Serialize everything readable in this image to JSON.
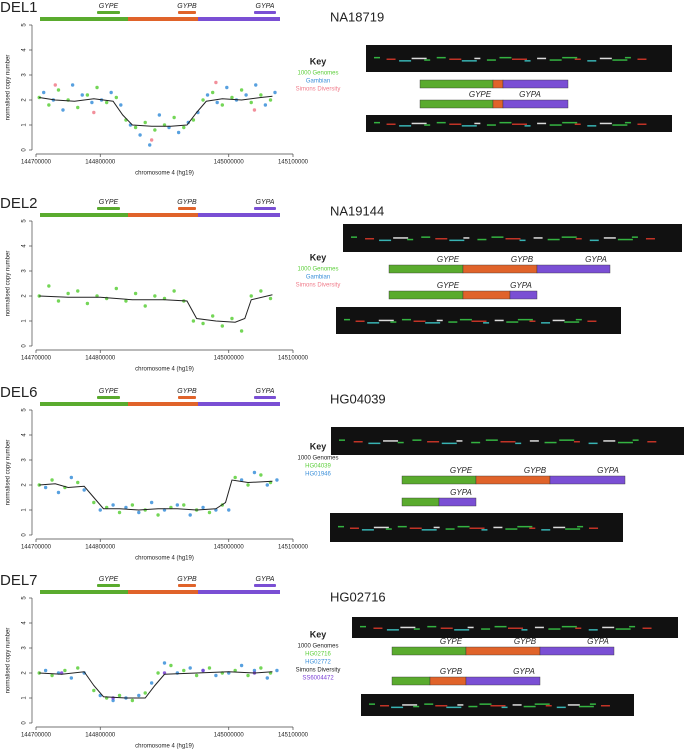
{
  "chart_data": [
    {
      "type": "scatter",
      "title": "DEL1",
      "genes": [
        "GYPE",
        "GYPB",
        "GYPA"
      ],
      "xlabel": "chromosome 4 (hg19)",
      "ylabel": "normalised copy number",
      "xlim": [
        144700000,
        145100000
      ],
      "xticks": [
        144700000,
        144800000,
        145000000,
        145100000
      ],
      "ylim": [
        0,
        5
      ],
      "yticks": [
        0,
        1,
        2,
        3,
        4,
        5
      ],
      "legend_title": "Key",
      "series": [
        {
          "name": "1000 Genomes",
          "color": "#5ccf3a",
          "x": [
            144705000,
            144720000,
            144735000,
            144750000,
            144765000,
            144780000,
            144795000,
            144810000,
            144825000,
            144840000,
            144855000,
            144870000,
            144885000,
            144900000,
            144915000,
            144930000,
            144945000,
            144960000,
            144975000,
            144990000,
            145005000,
            145020000,
            145035000,
            145050000,
            145065000
          ],
          "values": [
            2.1,
            1.8,
            2.4,
            2.0,
            1.7,
            2.2,
            2.5,
            1.9,
            2.1,
            1.2,
            0.9,
            1.1,
            0.8,
            1.0,
            1.3,
            0.9,
            1.2,
            2.0,
            2.3,
            1.8,
            2.1,
            2.4,
            1.9,
            2.2,
            2.0
          ]
        },
        {
          "name": "Gambian",
          "color": "#3a8fd9",
          "x": [
            144712000,
            144727000,
            144742000,
            144757000,
            144772000,
            144787000,
            144802000,
            144817000,
            144832000,
            144847000,
            144862000,
            144877000,
            144892000,
            144907000,
            144922000,
            144937000,
            144952000,
            144967000,
            144982000,
            144997000,
            145012000,
            145027000,
            145042000,
            145057000,
            145072000
          ],
          "values": [
            2.3,
            2.0,
            1.6,
            2.6,
            2.2,
            1.9,
            2.0,
            2.3,
            1.8,
            1.0,
            0.6,
            0.2,
            1.4,
            0.9,
            0.7,
            1.1,
            1.5,
            2.2,
            1.9,
            2.5,
            2.0,
            2.2,
            2.6,
            1.8,
            2.3
          ]
        },
        {
          "name": "Simons Diversity",
          "color": "#f07b8a",
          "x": [
            144730000,
            144790000,
            144880000,
            144980000,
            145040000
          ],
          "values": [
            2.6,
            1.5,
            0.4,
            2.7,
            1.6
          ]
        }
      ],
      "trend": {
        "color": "#222222",
        "x": [
          144705000,
          144730000,
          144760000,
          144790000,
          144820000,
          144835000,
          144850000,
          144880000,
          144910000,
          144935000,
          144950000,
          144965000,
          144990000,
          145020000,
          145050000,
          145068000
        ],
        "values": [
          2.1,
          2.0,
          1.95,
          2.05,
          1.95,
          1.4,
          1.0,
          0.95,
          0.95,
          1.0,
          1.5,
          1.95,
          2.05,
          2.0,
          2.1,
          2.15
        ]
      }
    },
    {
      "type": "scatter",
      "title": "DEL2",
      "genes": [
        "GYPE",
        "GYPB",
        "GYPA"
      ],
      "xlabel": "chromosome 4 (hg19)",
      "ylabel": "normalised copy number",
      "xlim": [
        144700000,
        145100000
      ],
      "xticks": [
        144700000,
        144800000,
        145000000,
        145100000
      ],
      "ylim": [
        0,
        5
      ],
      "yticks": [
        0,
        1,
        2,
        3,
        4,
        5
      ],
      "legend_title": "Key",
      "series": [
        {
          "name": "1000 Genomes",
          "color": "#5ccf3a",
          "x": [
            144705000,
            144720000,
            144735000,
            144750000,
            144765000,
            144780000,
            144795000,
            144810000,
            144825000,
            144840000,
            144855000,
            144870000,
            144885000,
            144900000,
            144915000,
            144930000,
            144945000,
            144960000,
            144975000,
            144990000,
            145005000,
            145020000,
            145035000,
            145050000,
            145065000
          ],
          "values": [
            2.0,
            2.4,
            1.8,
            2.1,
            2.2,
            1.7,
            2.0,
            1.9,
            2.3,
            1.8,
            2.1,
            1.6,
            2.0,
            1.9,
            2.2,
            1.8,
            1.0,
            0.9,
            1.2,
            0.8,
            1.1,
            0.6,
            2.0,
            2.2,
            1.9
          ]
        },
        {
          "name": "Gambian",
          "color": "#3a8fd9",
          "x": [],
          "values": []
        },
        {
          "name": "Simons Diversity",
          "color": "#f07b8a",
          "x": [],
          "values": []
        }
      ],
      "trend": {
        "color": "#222222",
        "x": [
          144705000,
          144750000,
          144800000,
          144850000,
          144900000,
          144935000,
          144950000,
          144980000,
          145010000,
          145025000,
          145035000,
          145068000
        ],
        "values": [
          2.0,
          1.95,
          1.95,
          1.85,
          1.85,
          1.8,
          1.1,
          1.0,
          0.95,
          1.1,
          1.85,
          2.05
        ]
      }
    },
    {
      "type": "scatter",
      "title": "DEL6",
      "genes": [
        "GYPE",
        "GYPB",
        "GYPA"
      ],
      "xlabel": "chromosome 4 (hg19)",
      "ylabel": "normalised copy number",
      "xlim": [
        144700000,
        145100000
      ],
      "xticks": [
        144700000,
        144800000,
        145000000,
        145100000
      ],
      "ylim": [
        0,
        5
      ],
      "yticks": [
        0,
        1,
        2,
        3,
        4,
        5
      ],
      "legend_title": "Key",
      "series": [
        {
          "name": "HG04039",
          "group": "1000 Genomes",
          "color": "#5ccf3a",
          "x": [
            144705000,
            144725000,
            144745000,
            144765000,
            144790000,
            144810000,
            144830000,
            144850000,
            144870000,
            144890000,
            144910000,
            144930000,
            144950000,
            144970000,
            144990000,
            145010000,
            145030000,
            145050000,
            145065000
          ],
          "values": [
            2.0,
            2.2,
            1.9,
            2.1,
            1.3,
            1.1,
            0.9,
            1.2,
            1.0,
            0.8,
            1.1,
            1.2,
            1.0,
            0.9,
            1.2,
            2.3,
            2.0,
            2.4,
            2.1
          ]
        },
        {
          "name": "HG01946",
          "group": "1000 Genomes",
          "color": "#3a8fd9",
          "x": [
            144715000,
            144735000,
            144755000,
            144775000,
            144800000,
            144820000,
            144840000,
            144860000,
            144880000,
            144900000,
            144920000,
            144940000,
            144960000,
            144980000,
            145000000,
            145020000,
            145040000,
            145060000,
            145075000
          ],
          "values": [
            1.9,
            1.7,
            2.3,
            1.8,
            1.0,
            1.2,
            1.1,
            0.9,
            1.3,
            1.0,
            1.2,
            0.8,
            1.1,
            1.0,
            1.0,
            2.2,
            2.5,
            2.0,
            2.2
          ]
        }
      ],
      "trend": {
        "color": "#222222",
        "x": [
          144705000,
          144730000,
          144750000,
          144775000,
          144790000,
          144805000,
          144830000,
          144860000,
          144890000,
          144920000,
          144950000,
          144980000,
          144995000,
          145005000,
          145030000,
          145068000
        ],
        "values": [
          2.0,
          2.05,
          1.9,
          1.95,
          1.5,
          1.05,
          1.05,
          1.0,
          1.05,
          1.05,
          1.0,
          1.05,
          1.3,
          2.2,
          2.1,
          2.15
        ]
      }
    },
    {
      "type": "scatter",
      "title": "DEL7",
      "genes": [
        "GYPE",
        "GYPB",
        "GYPA"
      ],
      "xlabel": "chromosome 4 (hg19)",
      "ylabel": "normalised copy number",
      "xlim": [
        144700000,
        145100000
      ],
      "xticks": [
        144700000,
        144800000,
        145000000,
        145100000
      ],
      "ylim": [
        0,
        5
      ],
      "yticks": [
        0,
        1,
        2,
        3,
        4,
        5
      ],
      "legend_title": "Key",
      "series": [
        {
          "name": "HG02716",
          "group": "1000 Genomes",
          "color": "#5ccf3a",
          "x": [
            144705000,
            144725000,
            144745000,
            144765000,
            144790000,
            144810000,
            144830000,
            144850000,
            144870000,
            144890000,
            144910000,
            144930000,
            144950000,
            144970000,
            144990000,
            145010000,
            145030000,
            145050000,
            145065000
          ],
          "values": [
            2.0,
            1.9,
            2.1,
            2.2,
            1.3,
            1.0,
            1.1,
            0.9,
            1.2,
            2.0,
            2.3,
            2.1,
            1.9,
            2.2,
            2.0,
            2.1,
            1.9,
            2.2,
            2.0
          ]
        },
        {
          "name": "HG02772",
          "group": "1000 Genomes",
          "color": "#3a8fd9",
          "x": [
            144715000,
            144735000,
            144755000,
            144775000,
            144800000,
            144820000,
            144840000,
            144860000,
            144880000,
            144900000,
            144920000,
            144940000,
            144960000,
            144980000,
            145000000,
            145020000,
            145040000,
            145060000,
            145075000
          ],
          "values": [
            2.1,
            2.0,
            1.8,
            2.0,
            1.1,
            0.9,
            1.0,
            1.1,
            1.6,
            2.4,
            2.0,
            2.2,
            2.1,
            1.9,
            2.0,
            2.3,
            2.1,
            1.8,
            2.1
          ]
        },
        {
          "name": "SS6004472",
          "group": "Simons Diversity",
          "color": "#7b3fd6",
          "x": [
            144740000,
            144820000,
            144900000,
            144960000,
            145040000
          ],
          "values": [
            2.0,
            1.0,
            2.0,
            2.1,
            2.0
          ]
        }
      ],
      "trend": {
        "color": "#222222",
        "x": [
          144705000,
          144740000,
          144775000,
          144790000,
          144805000,
          144840000,
          144870000,
          144885000,
          144900000,
          144950000,
          145000000,
          145040000,
          145068000
        ],
        "values": [
          2.0,
          1.95,
          2.05,
          1.5,
          1.05,
          1.0,
          1.0,
          1.5,
          1.95,
          2.0,
          2.05,
          2.0,
          2.05
        ]
      }
    }
  ],
  "samples": [
    {
      "name": "NA18719",
      "bars": [
        {
          "labels": []
        },
        {
          "labels": [
            "GYPE",
            "GYPA"
          ]
        }
      ]
    },
    {
      "name": "NA19144",
      "bars": [
        {
          "labels": [
            "GYPE",
            "GYPB",
            "GYPA"
          ]
        },
        {
          "labels": [
            "GYPE",
            "GYPA"
          ]
        }
      ]
    },
    {
      "name": "HG04039",
      "bars": [
        {
          "labels": [
            "GYPE",
            "GYPB",
            "GYPA"
          ]
        },
        {
          "labels": [
            "GYPA"
          ]
        }
      ]
    },
    {
      "name": "HG02716",
      "bars": [
        {
          "labels": [
            "GYPE",
            "GYPB",
            "GYPA"
          ]
        },
        {
          "labels": [
            "GYPB",
            "GYPA"
          ]
        }
      ]
    }
  ]
}
